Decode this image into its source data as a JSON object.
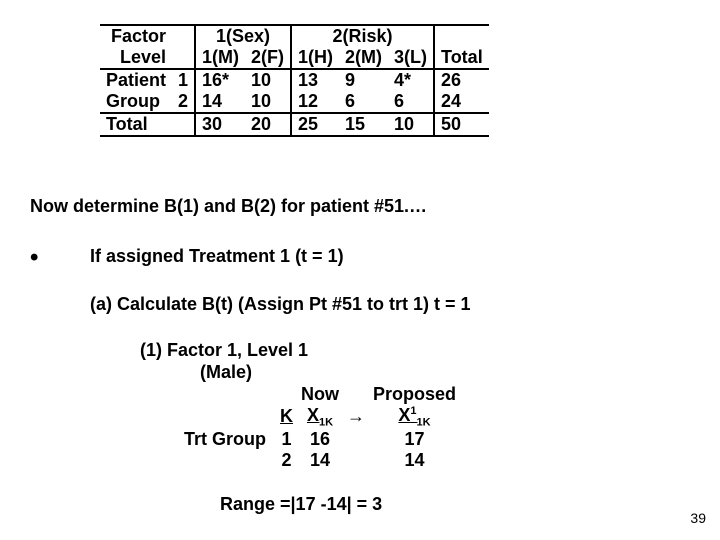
{
  "table": {
    "factor_label": "Factor",
    "level_label": "Level",
    "rowgroup_top": "Patient",
    "rowgroup_bot": "Group",
    "row1_k": "1",
    "row2_k": "2",
    "total_label": "Total",
    "f1_header": "1(Sex)",
    "f1_l1": "1(M)",
    "f1_l2": "2(F)",
    "f2_header": "2(Risk)",
    "f2_l1": "1(H)",
    "f2_l2": "2(M)",
    "f2_l3": "3(L)",
    "tot_header": "Total",
    "r1": {
      "f1l1": "16*",
      "f1l2": "10",
      "f2l1": "13",
      "f2l2": "9",
      "f2l3": "4*",
      "tot": "26"
    },
    "r2": {
      "f1l1": "14",
      "f1l2": "10",
      "f2l1": "12",
      "f2l2": "6",
      "f2l3": "6",
      "tot": "24"
    },
    "rt": {
      "f1l1": "30",
      "f1l2": "20",
      "f2l1": "25",
      "f2l2": "15",
      "f2l3": "10",
      "tot": "50"
    }
  },
  "text": {
    "determine": "Now determine B(1) and B(2) for patient #51.…",
    "bullet": "•",
    "ifassigned": "If assigned Treatment 1 (t = 1)",
    "calc": "(a)  Calculate B(t)  (Assign Pt #51 to trt 1)  t = 1",
    "factor_line": "(1)   Factor 1, Level 1",
    "male_line": "(Male)",
    "range": "Range =|17 -14| = 3",
    "pagenum": "39"
  },
  "subtable": {
    "now": "Now",
    "proposed": "Proposed",
    "k": "K",
    "x_now": "X",
    "x_now_sub": "1K",
    "arrow": "→",
    "x_prop": "X",
    "x_prop_sup": "1",
    "x_prop_sub": "1K",
    "trt_group": "Trt Group",
    "rows": [
      {
        "k": "1",
        "now": "16",
        "prop": "17"
      },
      {
        "k": "2",
        "now": "14",
        "prop": "14"
      }
    ]
  }
}
